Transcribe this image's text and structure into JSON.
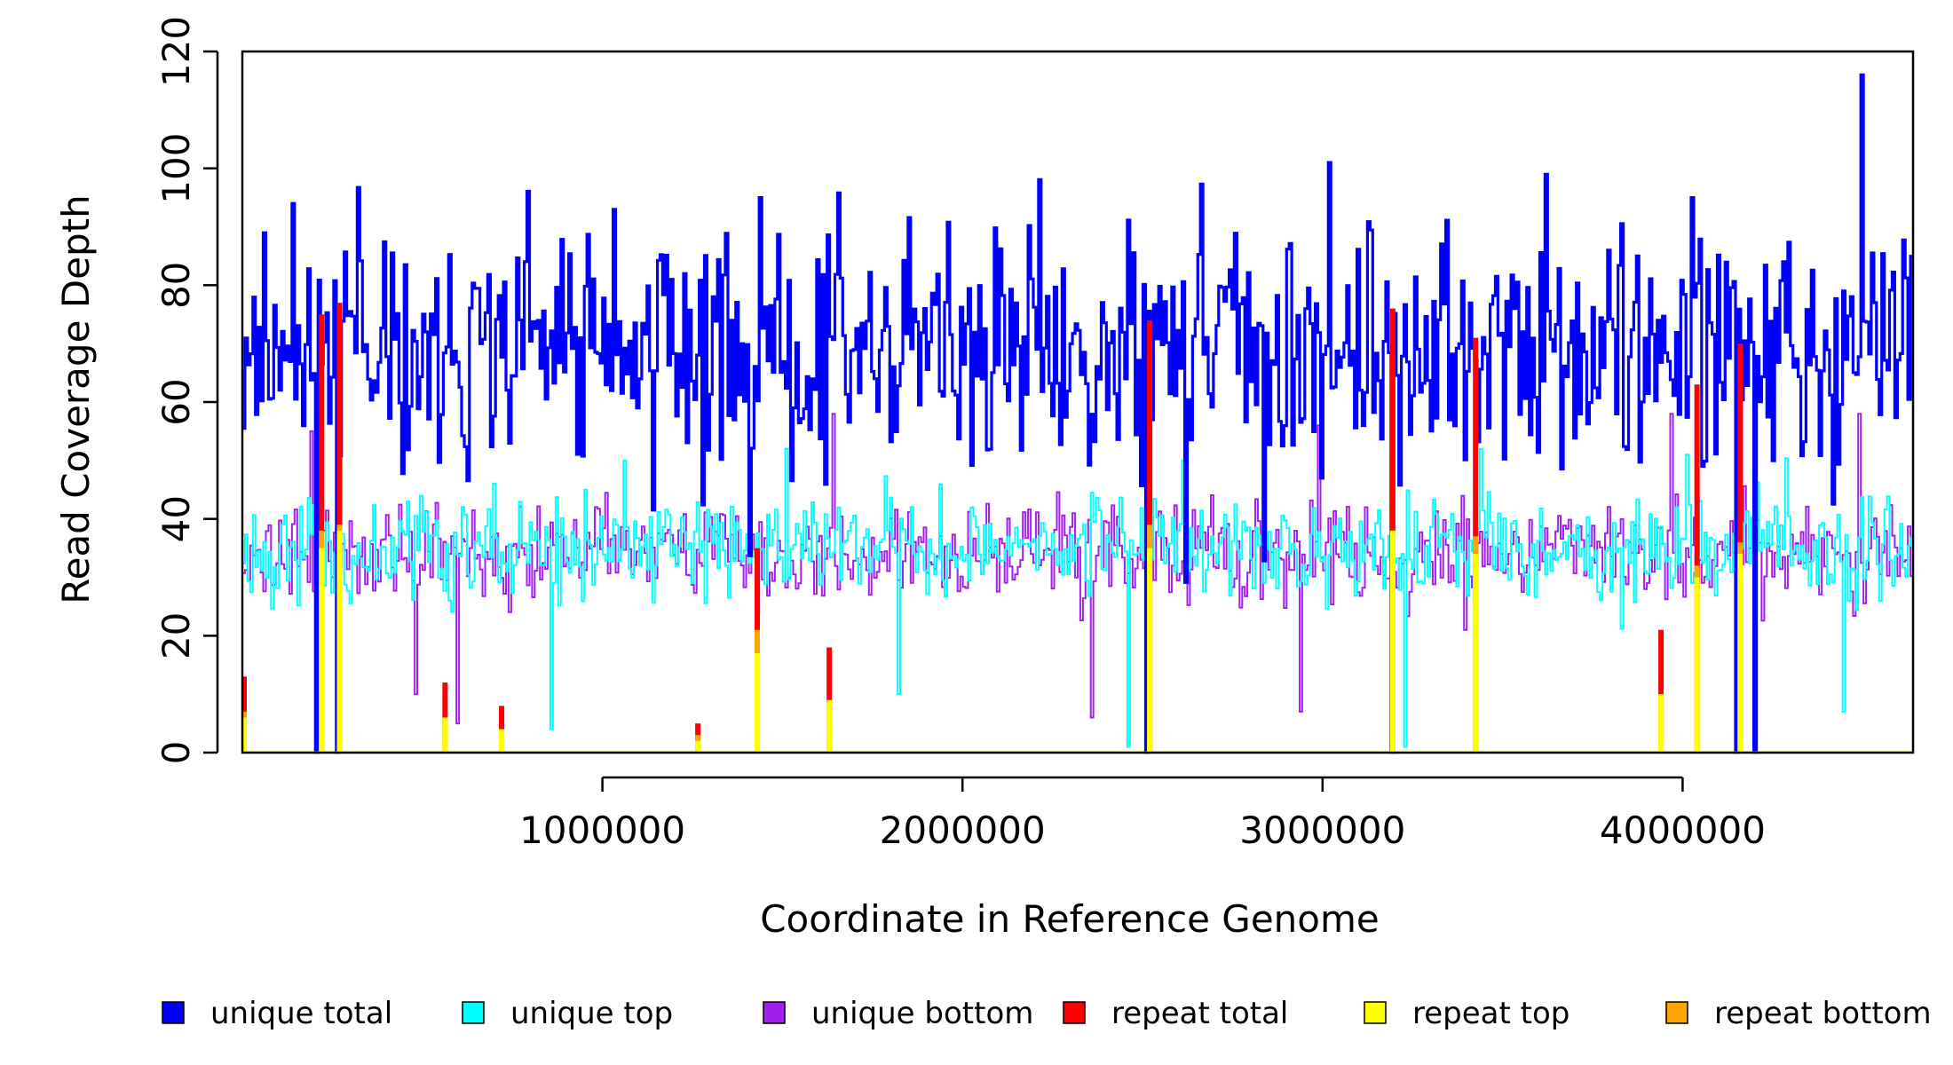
{
  "chart_data": {
    "type": "line",
    "title": "",
    "xlabel": "Coordinate in Reference Genome",
    "ylabel": "Read Coverage Depth",
    "xlim": [
      0,
      4640000
    ],
    "ylim": [
      0,
      120
    ],
    "x_ticks": [
      {
        "value": 1000000,
        "label": "1000000"
      },
      {
        "value": 2000000,
        "label": "2000000"
      },
      {
        "value": 3000000,
        "label": "3000000"
      },
      {
        "value": 4000000,
        "label": "4000000"
      }
    ],
    "y_ticks": [
      {
        "value": 0,
        "label": "0"
      },
      {
        "value": 20,
        "label": "20"
      },
      {
        "value": 40,
        "label": "40"
      },
      {
        "value": 60,
        "label": "60"
      },
      {
        "value": 80,
        "label": "80"
      },
      {
        "value": 100,
        "label": "100"
      },
      {
        "value": 120,
        "label": "120"
      }
    ],
    "legend_position": "bottom",
    "series": [
      {
        "name": "unique total",
        "color": "#0000ff",
        "baseline": 68,
        "amplitude": 22,
        "seed": 11,
        "dips": [
          [
            210000,
            0
          ],
          [
            265000,
            0
          ],
          [
            2510000,
            0
          ],
          [
            3190000,
            0
          ],
          [
            4150000,
            0
          ],
          [
            4200000,
            0
          ]
        ],
        "peaks": [
          [
            140000,
            94
          ],
          [
            1030000,
            93
          ],
          [
            1440000,
            95
          ],
          [
            3020000,
            101
          ],
          [
            3620000,
            99
          ],
          [
            4030000,
            95
          ],
          [
            4500000,
            116
          ]
        ]
      },
      {
        "name": "unique top",
        "color": "#00ffff",
        "baseline": 35,
        "amplitude": 9,
        "seed": 23,
        "dips": [
          [
            210000,
            0
          ],
          [
            265000,
            0
          ],
          [
            860000,
            4
          ],
          [
            1820000,
            10
          ],
          [
            2460000,
            1
          ],
          [
            2510000,
            0
          ],
          [
            3190000,
            0
          ],
          [
            3230000,
            1
          ],
          [
            4150000,
            0
          ],
          [
            4200000,
            0
          ],
          [
            4450000,
            7
          ]
        ],
        "peaks": [
          [
            1060000,
            50
          ],
          [
            1510000,
            52
          ],
          [
            2610000,
            50
          ],
          [
            3440000,
            52
          ],
          [
            4010000,
            51
          ]
        ]
      },
      {
        "name": "unique bottom",
        "color": "#a020f0",
        "baseline": 34,
        "amplitude": 9,
        "seed": 37,
        "dips": [
          [
            210000,
            0
          ],
          [
            265000,
            0
          ],
          [
            480000,
            10
          ],
          [
            600000,
            5
          ],
          [
            2360000,
            6
          ],
          [
            2510000,
            0
          ],
          [
            2940000,
            7
          ],
          [
            3190000,
            0
          ],
          [
            4150000,
            0
          ],
          [
            4200000,
            0
          ]
        ],
        "peaks": [
          [
            190000,
            55
          ],
          [
            1640000,
            58
          ],
          [
            2990000,
            56
          ],
          [
            3970000,
            58
          ],
          [
            4490000,
            58
          ]
        ]
      },
      {
        "name": "repeat total",
        "color": "#ff0000",
        "points": [
          [
            5000,
            13
          ],
          [
            220000,
            75
          ],
          [
            270000,
            77
          ],
          [
            563000,
            12
          ],
          [
            720000,
            8
          ],
          [
            1265000,
            5
          ],
          [
            1430000,
            35
          ],
          [
            1630000,
            18
          ],
          [
            2520000,
            74
          ],
          [
            3195000,
            76
          ],
          [
            3425000,
            71
          ],
          [
            3940000,
            21
          ],
          [
            4040000,
            63
          ],
          [
            4160000,
            70
          ]
        ]
      },
      {
        "name": "repeat top",
        "color": "#ffff00",
        "points": [
          [
            5000,
            6
          ],
          [
            220000,
            35
          ],
          [
            270000,
            38
          ],
          [
            563000,
            6
          ],
          [
            720000,
            4
          ],
          [
            1265000,
            2
          ],
          [
            1430000,
            17
          ],
          [
            1630000,
            9
          ],
          [
            2520000,
            35
          ],
          [
            3195000,
            38
          ],
          [
            3425000,
            34
          ],
          [
            3940000,
            10
          ],
          [
            4040000,
            30
          ],
          [
            4160000,
            34
          ]
        ]
      },
      {
        "name": "repeat bottom",
        "color": "#ffa500",
        "points": [
          [
            5000,
            7
          ],
          [
            220000,
            38
          ],
          [
            270000,
            39
          ],
          [
            563000,
            6
          ],
          [
            720000,
            4
          ],
          [
            1265000,
            3
          ],
          [
            1430000,
            21
          ],
          [
            1630000,
            8
          ],
          [
            2520000,
            39
          ],
          [
            3195000,
            38
          ],
          [
            3425000,
            37
          ],
          [
            3940000,
            9
          ],
          [
            4040000,
            32
          ],
          [
            4160000,
            36
          ]
        ]
      }
    ]
  }
}
